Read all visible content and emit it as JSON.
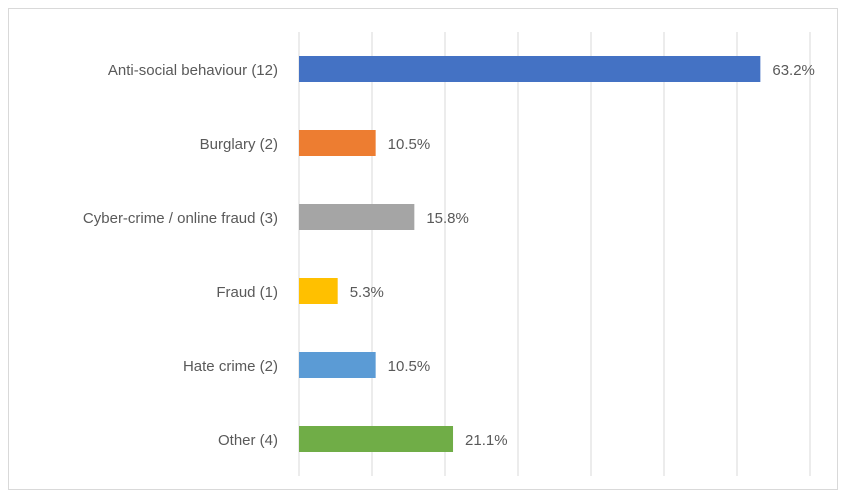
{
  "chart_data": {
    "type": "barh",
    "categories": [
      "Anti-social behaviour (12)",
      "Burglary (2)",
      "Cyber-crime / online fraud (3)",
      "Fraud (1)",
      "Hate crime (2)",
      "Other (4)"
    ],
    "values": [
      63.2,
      10.5,
      15.8,
      5.3,
      10.5,
      21.1
    ],
    "value_labels": [
      "63.2%",
      "10.5%",
      "15.8%",
      "5.3%",
      "10.5%",
      "21.1%"
    ],
    "colors": [
      "#4472c4",
      "#ed7d31",
      "#a5a5a5",
      "#ffc000",
      "#5b9bd5",
      "#70ad47"
    ],
    "xlim": [
      0,
      70
    ],
    "xticks": [
      0,
      10,
      20,
      30,
      40,
      50,
      60,
      70
    ],
    "grid": true
  }
}
